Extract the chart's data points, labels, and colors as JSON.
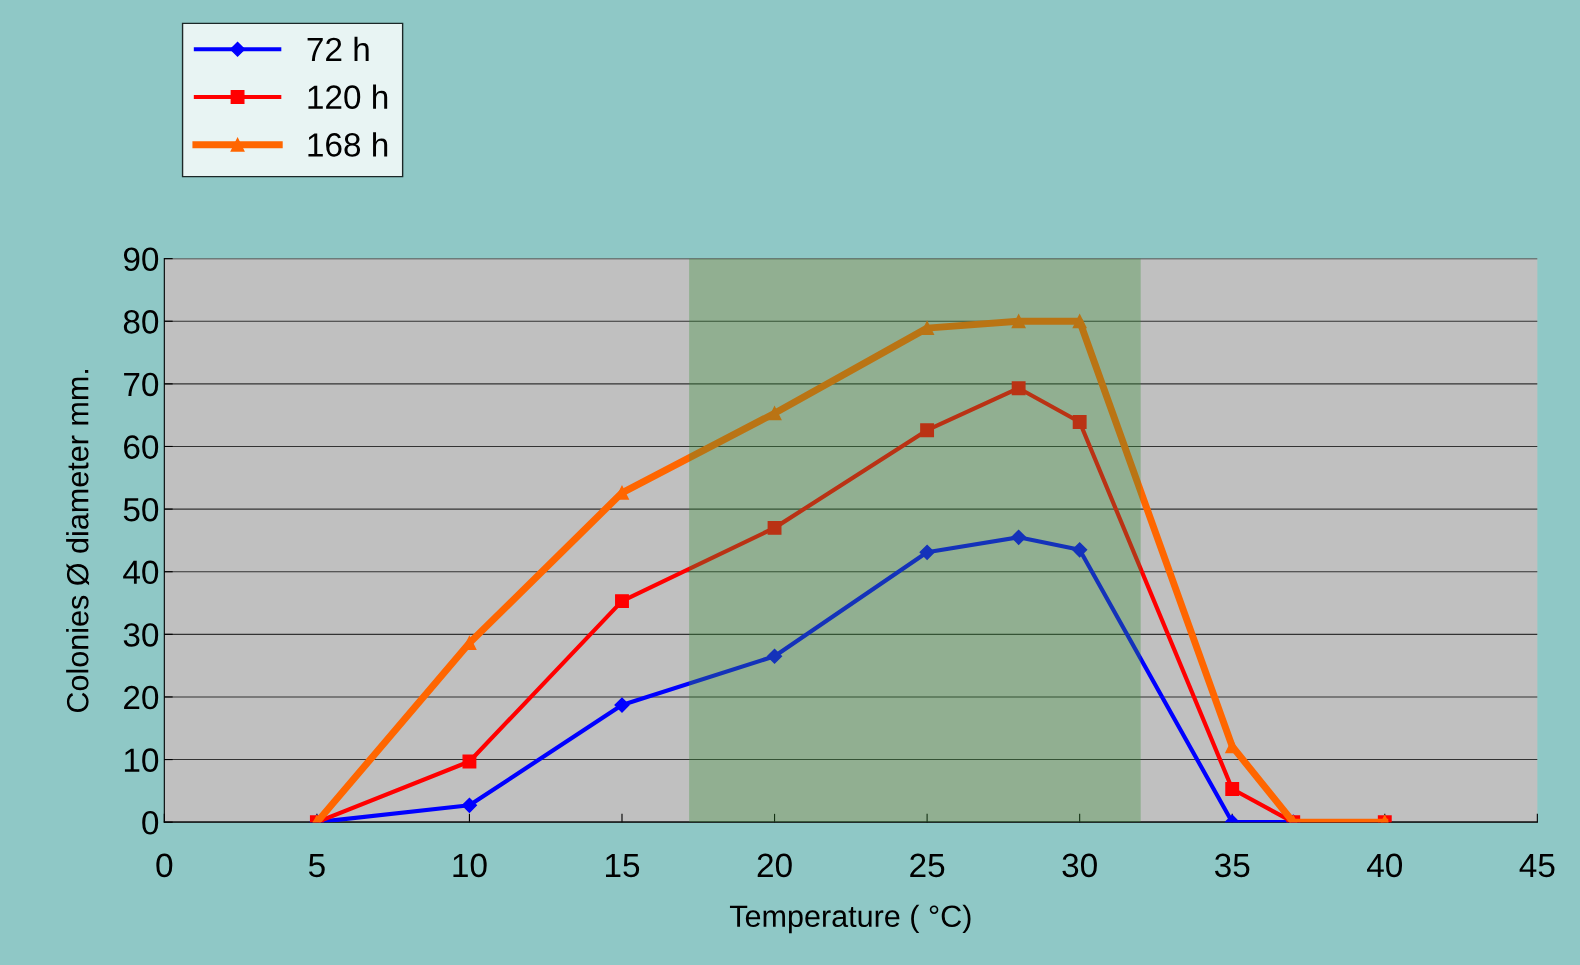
{
  "chart_data": {
    "type": "line",
    "xlabel": "Temperature ( °C)",
    "ylabel": "Colonies Ø diameter mm.",
    "xlim": [
      0,
      45
    ],
    "xticks": [
      0,
      5,
      10,
      15,
      20,
      25,
      30,
      35,
      40,
      45
    ],
    "ylim": [
      0,
      90
    ],
    "yticks": [
      0,
      10,
      20,
      30,
      40,
      50,
      60,
      70,
      80,
      90
    ],
    "grid": "y",
    "legend": "top left",
    "bands": [
      {
        "axis": "x",
        "from": 17.2,
        "to": 32.0,
        "color": "#3a8f3a"
      }
    ],
    "series": [
      {
        "name": "72 h",
        "color": "#0000ff",
        "marker": "diamond",
        "x": [
          5,
          10,
          15,
          20,
          25,
          28,
          30,
          35,
          37
        ],
        "values": [
          0,
          2.7,
          18.7,
          26.5,
          43.1,
          45.5,
          43.5,
          0,
          0
        ]
      },
      {
        "name": "120 h",
        "color": "#ff0000",
        "marker": "square",
        "x": [
          5,
          10,
          15,
          20,
          25,
          28,
          30,
          35,
          37,
          40
        ],
        "values": [
          0,
          9.7,
          35.3,
          47,
          62.6,
          69.3,
          63.9,
          5.3,
          0,
          0
        ]
      },
      {
        "name": "168 h",
        "color": "#ff6600",
        "marker": "triangle",
        "x": [
          5,
          10,
          15,
          20,
          25,
          28,
          30,
          35,
          37,
          40
        ],
        "values": [
          0,
          28.6,
          52.6,
          65.3,
          78.9,
          80,
          80,
          12.1,
          0,
          0
        ]
      }
    ]
  }
}
